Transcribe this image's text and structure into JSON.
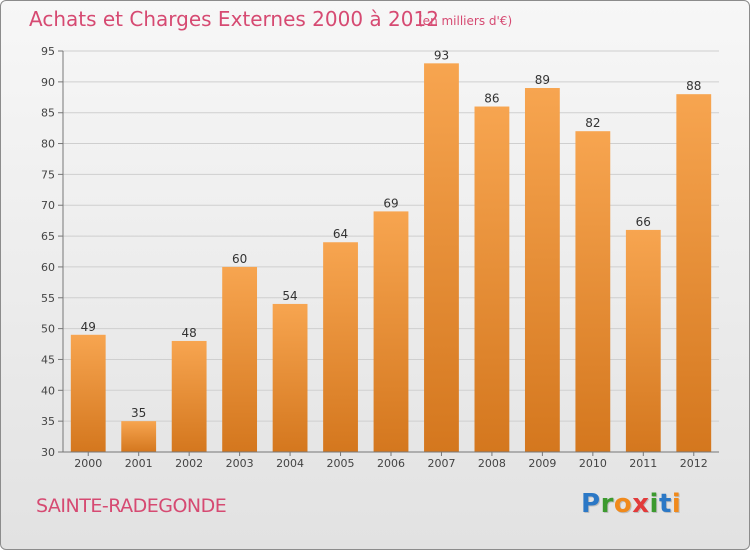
{
  "title": "Achats et Charges Externes 2000 à 2012",
  "subtitle": "(en milliers d'€)",
  "commune": "SAINTE-RADEGONDE",
  "logo": {
    "text": "Proxiti",
    "letters": [
      {
        "ch": "P",
        "color": "#2b78c6"
      },
      {
        "ch": "r",
        "color": "#3c9a2f"
      },
      {
        "ch": "o",
        "color": "#f08a1c"
      },
      {
        "ch": "x",
        "color": "#e23b3b"
      },
      {
        "ch": "i",
        "color": "#3c9a2f"
      },
      {
        "ch": "t",
        "color": "#2b78c6"
      },
      {
        "ch": "i",
        "color": "#f08a1c"
      }
    ]
  },
  "colors": {
    "title": "#d64a72",
    "bar_light": "#f7a550",
    "bar_dark": "#d4771e",
    "grid": "#cfcfcf"
  },
  "chart_data": {
    "type": "bar",
    "title": "Achats et Charges Externes 2000 à 2012",
    "subtitle": "(en milliers d'€)",
    "categories": [
      "2000",
      "2001",
      "2002",
      "2003",
      "2004",
      "2005",
      "2006",
      "2007",
      "2008",
      "2009",
      "2010",
      "2011",
      "2012"
    ],
    "values": [
      49,
      35,
      48,
      60,
      54,
      64,
      69,
      93,
      86,
      89,
      82,
      66,
      88
    ],
    "ylim": [
      30,
      95
    ],
    "yticks": [
      30,
      35,
      40,
      45,
      50,
      55,
      60,
      65,
      70,
      75,
      80,
      85,
      90,
      95
    ],
    "grid": true,
    "data_labels": true
  }
}
